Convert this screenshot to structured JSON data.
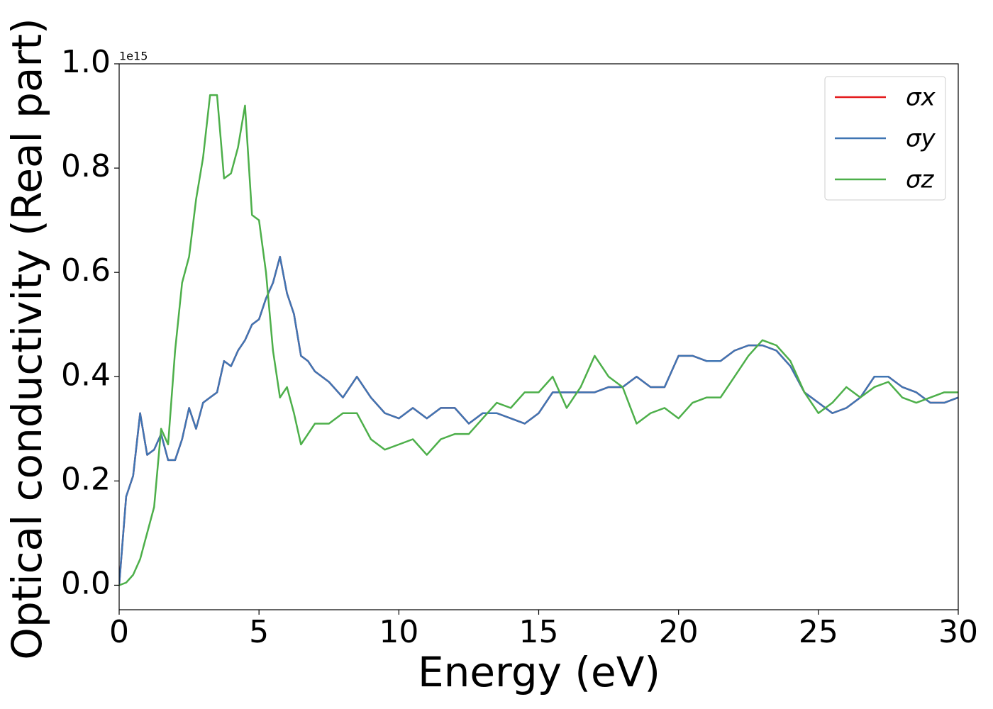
{
  "chart_data": {
    "type": "line",
    "xlabel": "Energy (eV)",
    "ylabel": "Optical conductivity (Real part)",
    "y_offset_label": "1e15",
    "x": [
      0,
      0.25,
      0.5,
      0.75,
      1,
      1.25,
      1.5,
      1.75,
      2,
      2.25,
      2.5,
      2.75,
      3,
      3.25,
      3.5,
      3.75,
      4,
      4.25,
      4.5,
      4.75,
      5,
      5.25,
      5.5,
      5.75,
      6,
      6.25,
      6.5,
      6.75,
      7,
      7.5,
      8,
      8.5,
      9,
      9.5,
      10,
      10.5,
      11,
      11.5,
      12,
      12.5,
      13,
      13.5,
      14,
      14.5,
      15,
      15.5,
      16,
      16.5,
      17,
      17.5,
      18,
      18.5,
      19,
      19.5,
      20,
      20.5,
      21,
      21.5,
      22,
      22.5,
      23,
      23.5,
      24,
      24.5,
      25,
      25.5,
      26,
      26.5,
      27,
      27.5,
      28,
      28.5,
      29,
      29.5,
      30
    ],
    "series": [
      {
        "name": "σx",
        "color": "#e41a1c",
        "values": [
          0,
          0.17,
          0.21,
          0.33,
          0.25,
          0.26,
          0.29,
          0.24,
          0.24,
          0.28,
          0.34,
          0.3,
          0.35,
          0.36,
          0.37,
          0.43,
          0.42,
          0.45,
          0.47,
          0.5,
          0.51,
          0.55,
          0.58,
          0.63,
          0.56,
          0.52,
          0.44,
          0.43,
          0.41,
          0.39,
          0.36,
          0.4,
          0.36,
          0.33,
          0.32,
          0.34,
          0.32,
          0.34,
          0.34,
          0.31,
          0.33,
          0.33,
          0.32,
          0.31,
          0.33,
          0.37,
          0.37,
          0.37,
          0.37,
          0.38,
          0.38,
          0.4,
          0.38,
          0.38,
          0.44,
          0.44,
          0.43,
          0.43,
          0.45,
          0.46,
          0.46,
          0.45,
          0.42,
          0.37,
          0.35,
          0.33,
          0.34,
          0.36,
          0.4,
          0.4,
          0.38,
          0.37,
          0.35,
          0.35,
          0.36
        ]
      },
      {
        "name": "σy",
        "color": "#3f75b3",
        "values": [
          0,
          0.17,
          0.21,
          0.33,
          0.25,
          0.26,
          0.29,
          0.24,
          0.24,
          0.28,
          0.34,
          0.3,
          0.35,
          0.36,
          0.37,
          0.43,
          0.42,
          0.45,
          0.47,
          0.5,
          0.51,
          0.55,
          0.58,
          0.63,
          0.56,
          0.52,
          0.44,
          0.43,
          0.41,
          0.39,
          0.36,
          0.4,
          0.36,
          0.33,
          0.32,
          0.34,
          0.32,
          0.34,
          0.34,
          0.31,
          0.33,
          0.33,
          0.32,
          0.31,
          0.33,
          0.37,
          0.37,
          0.37,
          0.37,
          0.38,
          0.38,
          0.4,
          0.38,
          0.38,
          0.44,
          0.44,
          0.43,
          0.43,
          0.45,
          0.46,
          0.46,
          0.45,
          0.42,
          0.37,
          0.35,
          0.33,
          0.34,
          0.36,
          0.4,
          0.4,
          0.38,
          0.37,
          0.35,
          0.35,
          0.36
        ]
      },
      {
        "name": "σz",
        "color": "#4daf4a",
        "values": [
          0,
          0.005,
          0.02,
          0.05,
          0.1,
          0.15,
          0.3,
          0.27,
          0.45,
          0.58,
          0.63,
          0.74,
          0.82,
          0.94,
          0.94,
          0.78,
          0.79,
          0.84,
          0.92,
          0.71,
          0.7,
          0.6,
          0.45,
          0.36,
          0.38,
          0.33,
          0.27,
          0.29,
          0.31,
          0.31,
          0.33,
          0.33,
          0.28,
          0.26,
          0.27,
          0.28,
          0.25,
          0.28,
          0.29,
          0.29,
          0.32,
          0.35,
          0.34,
          0.37,
          0.37,
          0.4,
          0.34,
          0.38,
          0.44,
          0.4,
          0.38,
          0.31,
          0.33,
          0.34,
          0.32,
          0.35,
          0.36,
          0.36,
          0.4,
          0.44,
          0.47,
          0.46,
          0.43,
          0.37,
          0.33,
          0.35,
          0.38,
          0.36,
          0.38,
          0.39,
          0.36,
          0.35,
          0.36,
          0.37,
          0.37
        ]
      }
    ],
    "xlim": [
      0,
      30
    ],
    "xticks": [
      0,
      5,
      10,
      15,
      20,
      25,
      30
    ],
    "ylim": [
      -0.047,
      1.0
    ],
    "yticks": [
      {
        "value": 0,
        "label": "0.0"
      },
      0.2,
      0.4,
      0.6,
      0.8,
      {
        "value": 1,
        "label": "1.0"
      }
    ],
    "legend": "upper right",
    "grid": false
  }
}
